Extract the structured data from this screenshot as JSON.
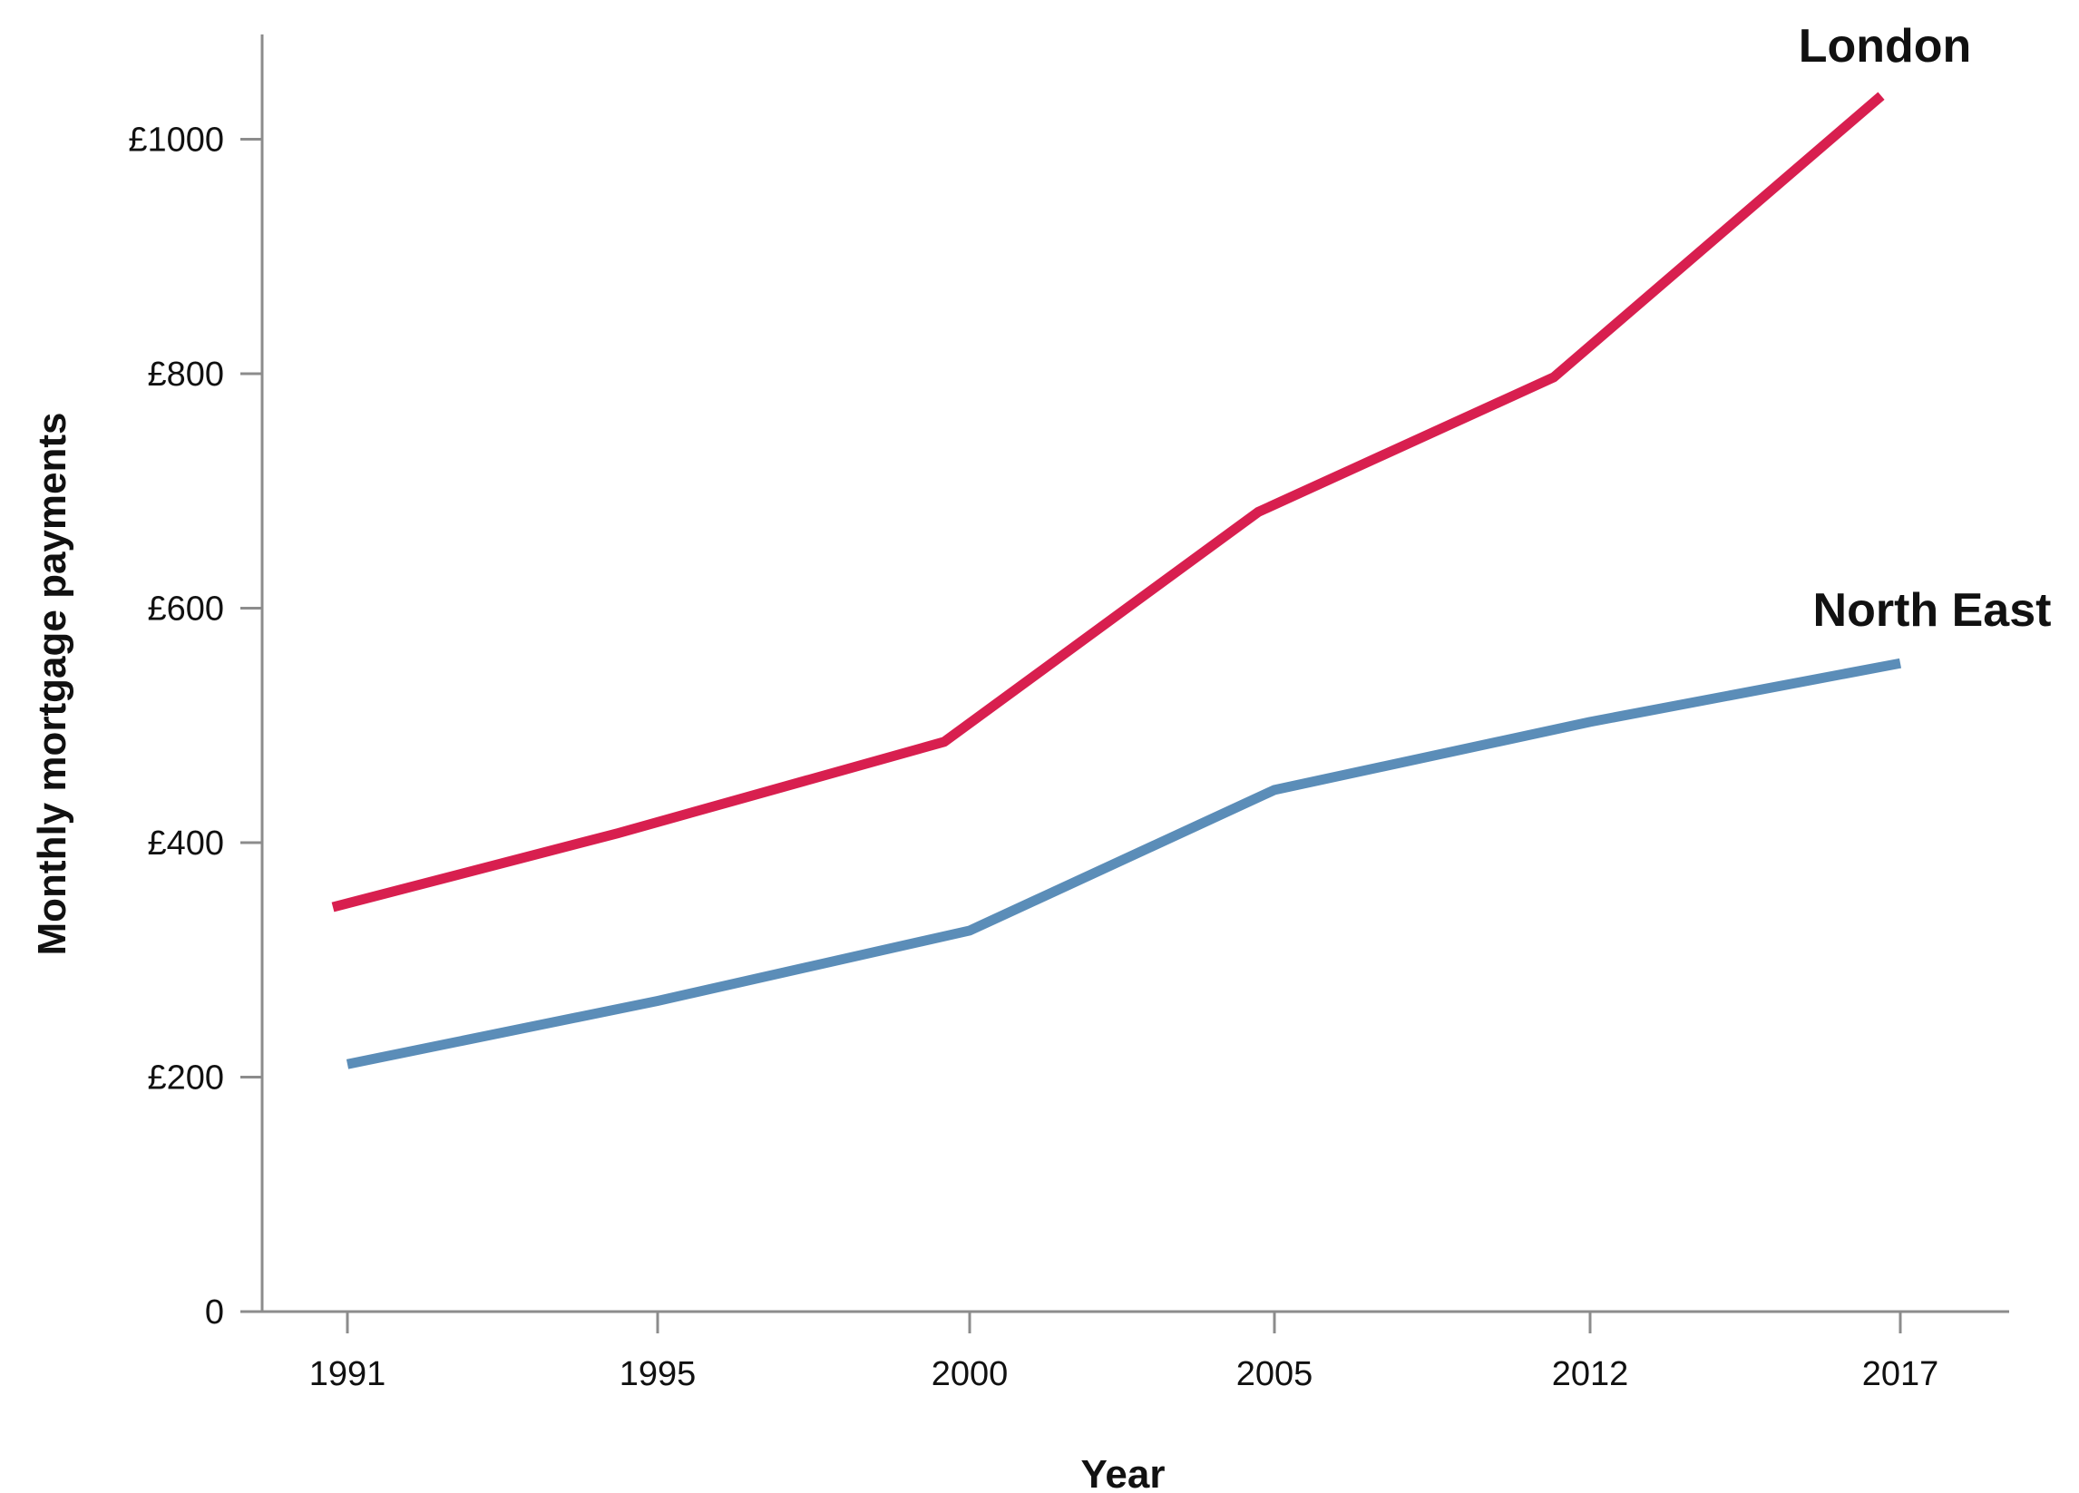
{
  "chart_data": {
    "type": "line",
    "title": "",
    "xlabel": "Year",
    "ylabel": "Monthly mortgage payments",
    "categories": [
      "1991",
      "1995",
      "2000",
      "2005",
      "2012",
      "2017"
    ],
    "y_ticks": [
      {
        "value": 0,
        "label": "0"
      },
      {
        "value": 200,
        "label": "£200"
      },
      {
        "value": 400,
        "label": "£400"
      },
      {
        "value": 600,
        "label": "£600"
      },
      {
        "value": 800,
        "label": "£800"
      },
      {
        "value": 1000,
        "label": "£1000"
      }
    ],
    "ylim": [
      0,
      1090
    ],
    "grid": false,
    "legend": "direct labels at line ends",
    "series": [
      {
        "name": "London",
        "color": "#d81f4f",
        "points": [
          {
            "x": 1991,
            "y": 345
          },
          {
            "x": 1995,
            "y": 408
          },
          {
            "x": 2000,
            "y": 486
          },
          {
            "x": 2005,
            "y": 682
          },
          {
            "x": 2012,
            "y": 797
          },
          {
            "x": 2017,
            "y": 1037
          }
        ]
      },
      {
        "name": "North East",
        "color": "#5b8db8",
        "points": [
          {
            "x": 1991,
            "y": 211
          },
          {
            "x": 1995,
            "y": 265
          },
          {
            "x": 2000,
            "y": 325
          },
          {
            "x": 2005,
            "y": 445
          },
          {
            "x": 2012,
            "y": 503
          },
          {
            "x": 2017,
            "y": 553
          }
        ]
      }
    ]
  }
}
